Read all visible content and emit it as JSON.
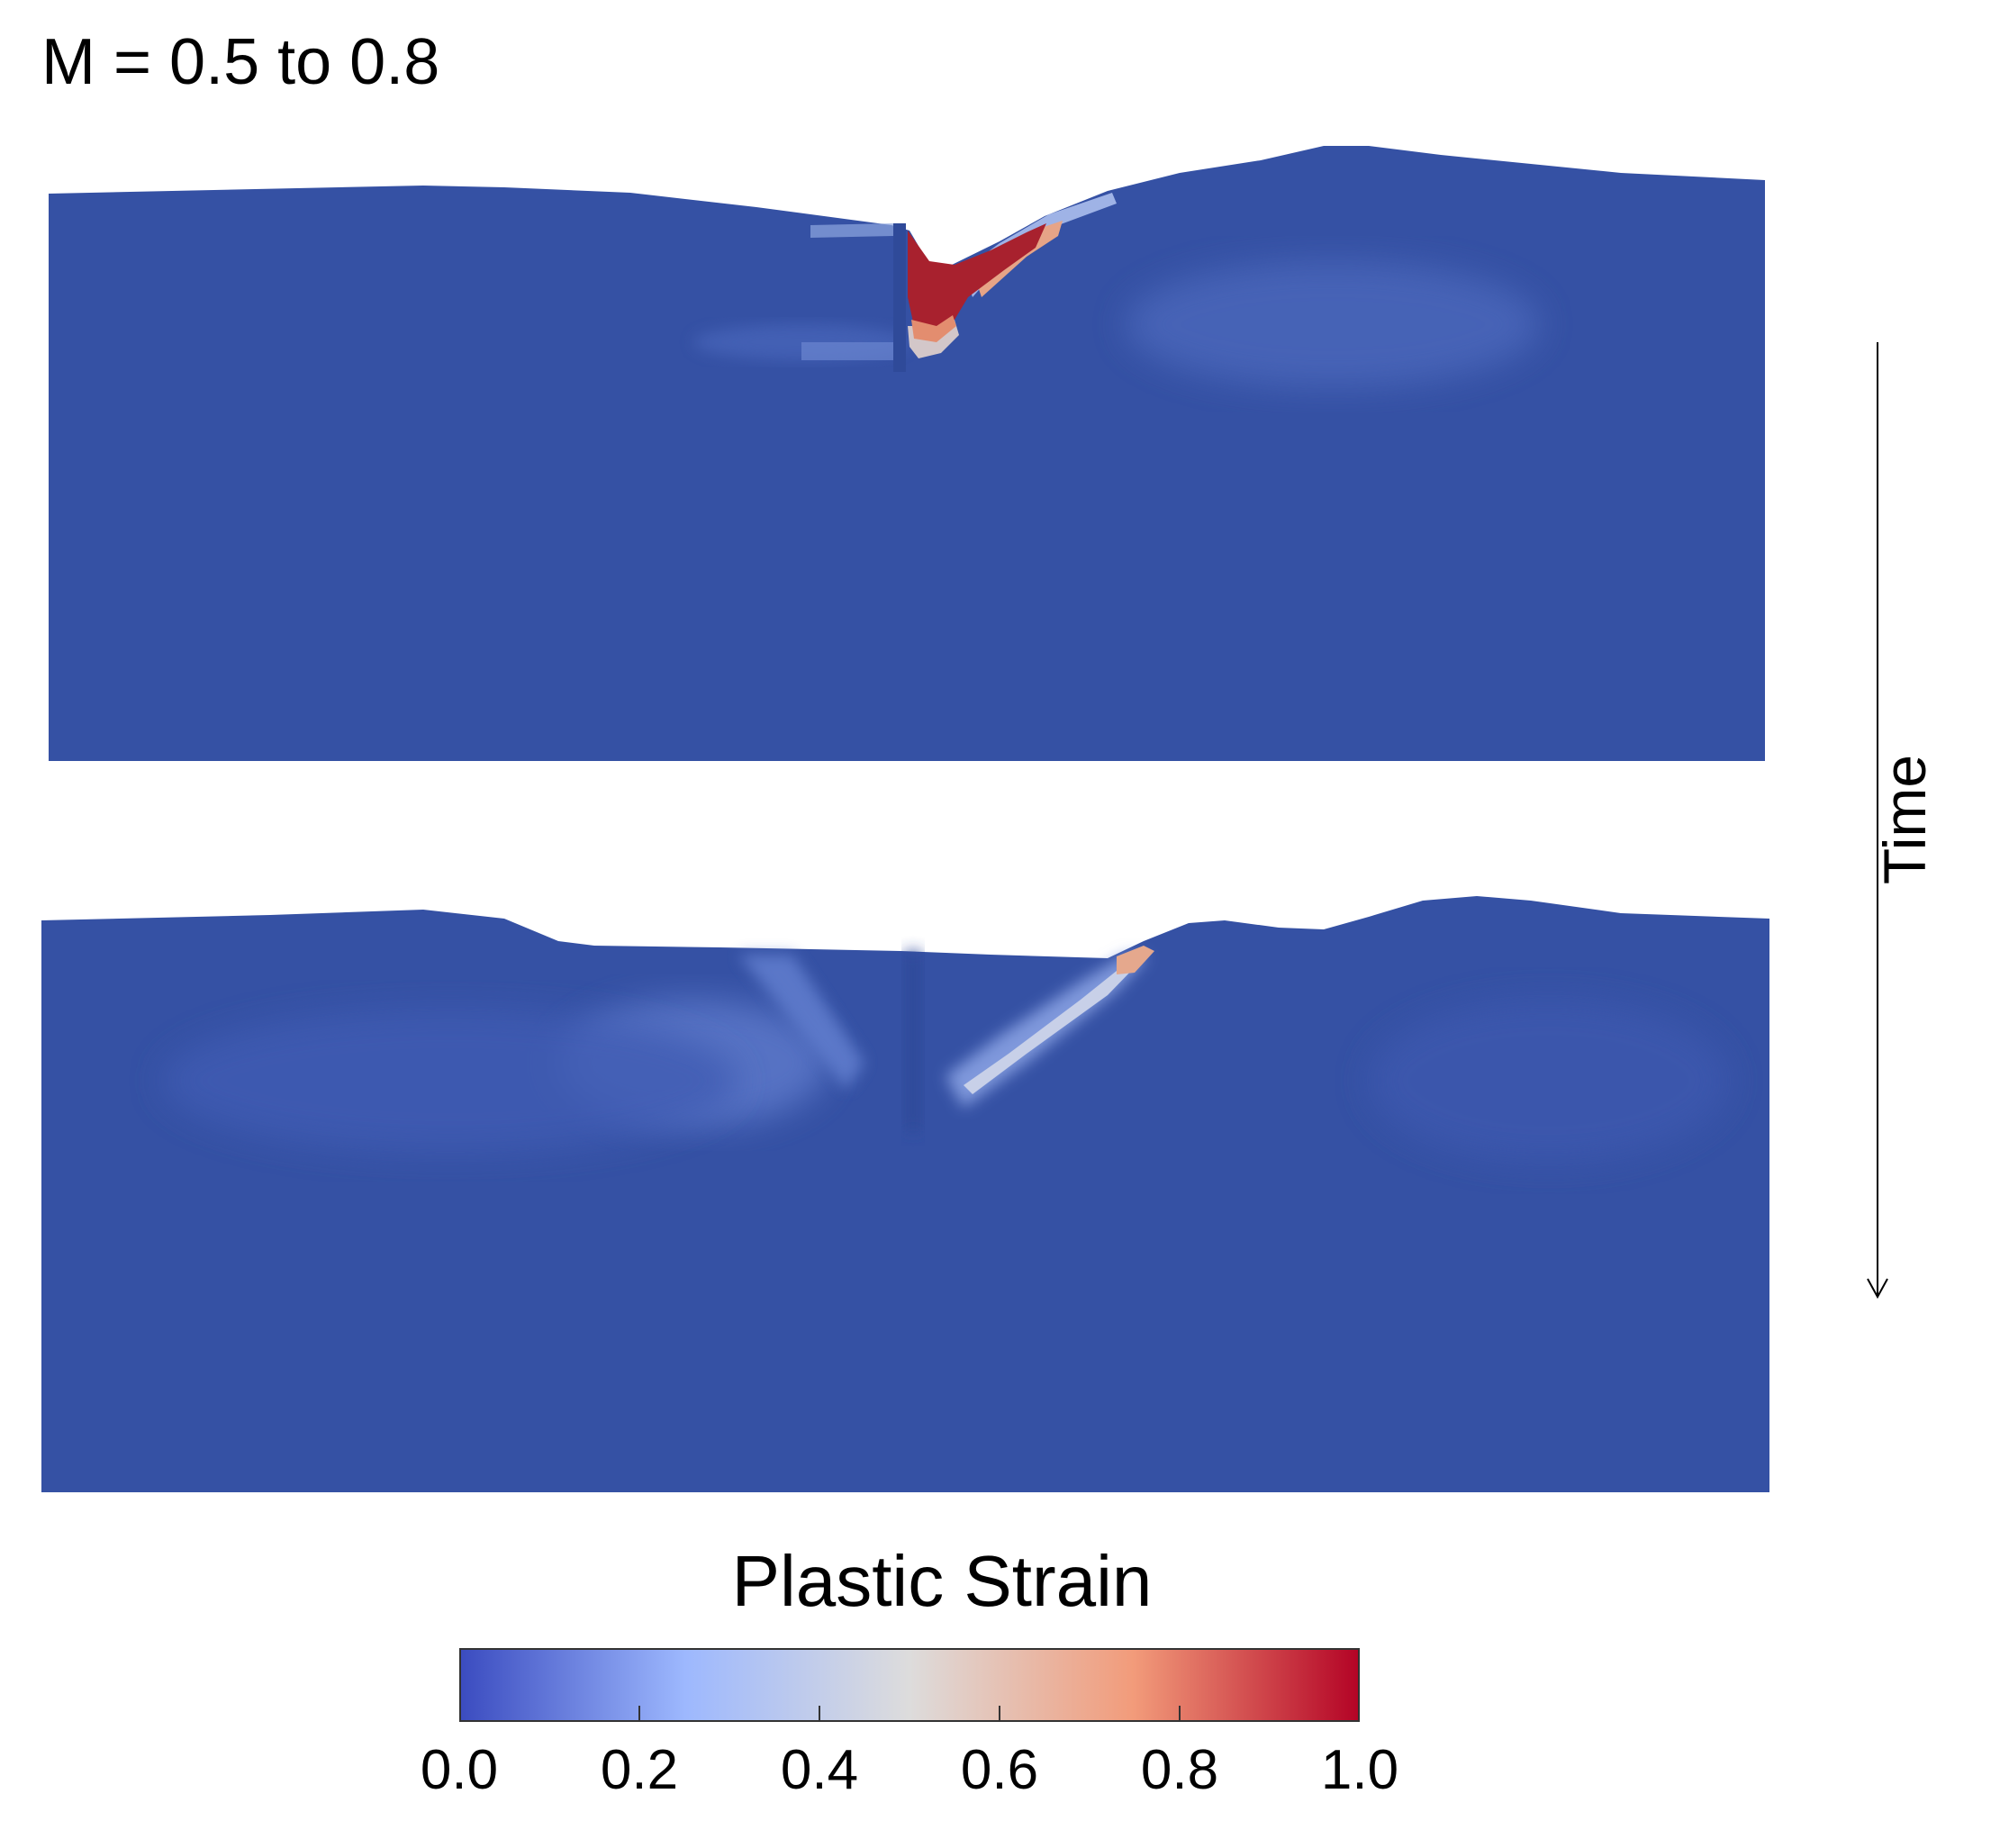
{
  "figure": {
    "title": "M = 0.5 to 0.8",
    "time_label": "Time"
  },
  "colorbar": {
    "title": "Plastic Strain",
    "range": [
      0.0,
      1.0
    ],
    "ticks": [
      "0.0",
      "0.2",
      "0.4",
      "0.6",
      "0.8",
      "1.0"
    ],
    "colormap": "coolwarm",
    "stops": [
      "#3b4cc0",
      "#9db8fe",
      "#dddcdc",
      "#f29b7a",
      "#b40426"
    ]
  },
  "colors": {
    "base_strain": "#3551a4",
    "low_strain": "#4a6ac0",
    "mid_strain": "#c9cde0",
    "high_strain": "#e8a88c",
    "max_strain": "#a8212e"
  },
  "panels": [
    {
      "name": "early-state"
    },
    {
      "name": "late-state"
    }
  ]
}
